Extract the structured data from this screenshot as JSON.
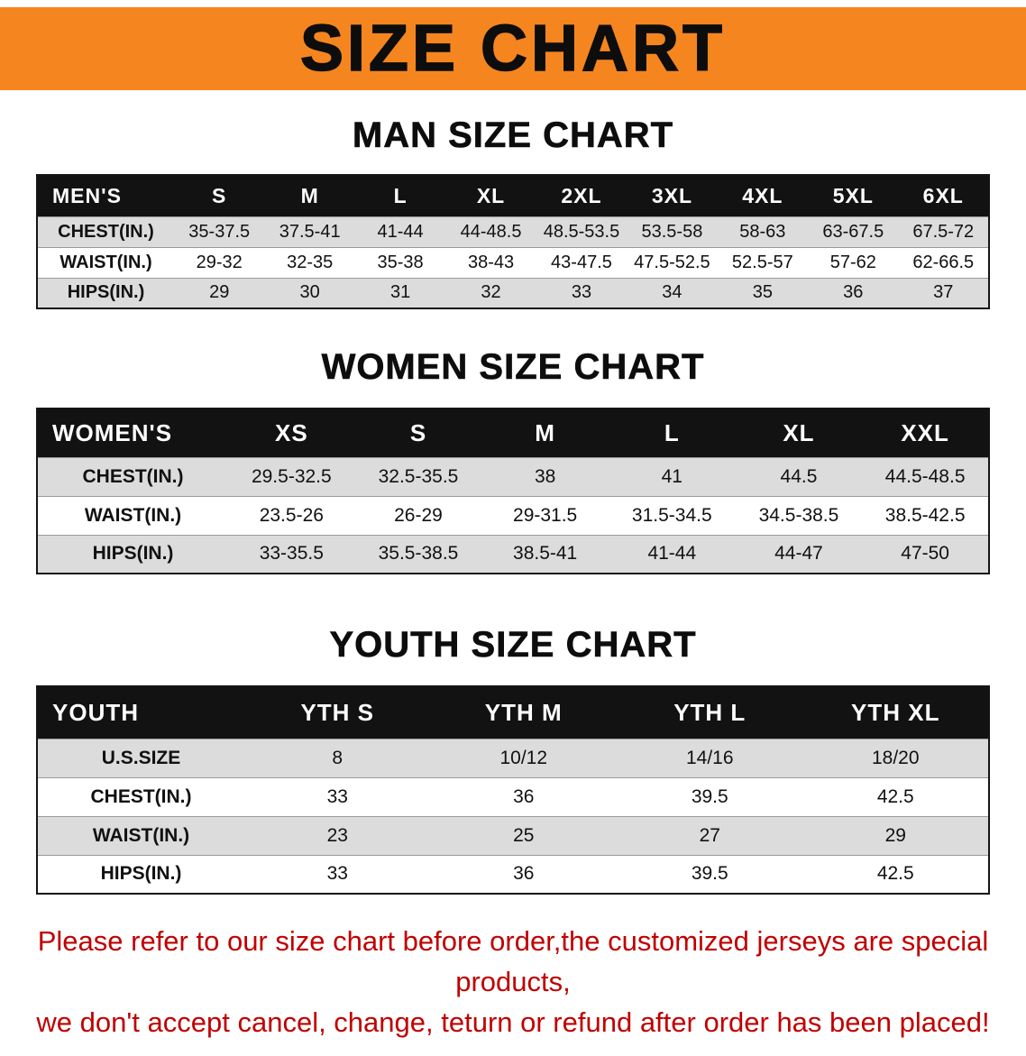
{
  "banner": {
    "title": "SIZE CHART",
    "bg_color": "#F5851F",
    "text_color": "#0d0d0d"
  },
  "sections": [
    {
      "heading": "MAN SIZE CHART",
      "table": {
        "header": [
          "MEN'S",
          "S",
          "M",
          "L",
          "XL",
          "2XL",
          "3XL",
          "4XL",
          "5XL",
          "6XL"
        ],
        "rows": [
          [
            "CHEST(IN.)",
            "35-37.5",
            "37.5-41",
            "41-44",
            "44-48.5",
            "48.5-53.5",
            "53.5-58",
            "58-63",
            "63-67.5",
            "67.5-72"
          ],
          [
            "WAIST(IN.)",
            "29-32",
            "32-35",
            "35-38",
            "38-43",
            "43-47.5",
            "47.5-52.5",
            "52.5-57",
            "57-62",
            "62-66.5"
          ],
          [
            "HIPS(IN.)",
            "29",
            "30",
            "31",
            "32",
            "33",
            "34",
            "35",
            "36",
            "37"
          ]
        ]
      }
    },
    {
      "heading": "WOMEN SIZE CHART",
      "table": {
        "header": [
          "WOMEN'S",
          "XS",
          "S",
          "M",
          "L",
          "XL",
          "XXL"
        ],
        "rows": [
          [
            "CHEST(IN.)",
            "29.5-32.5",
            "32.5-35.5",
            "38",
            "41",
            "44.5",
            "44.5-48.5"
          ],
          [
            "WAIST(IN.)",
            "23.5-26",
            "26-29",
            "29-31.5",
            "31.5-34.5",
            "34.5-38.5",
            "38.5-42.5"
          ],
          [
            "HIPS(IN.)",
            "33-35.5",
            "35.5-38.5",
            "38.5-41",
            "41-44",
            "44-47",
            "47-50"
          ]
        ]
      }
    },
    {
      "heading": "YOUTH SIZE CHART",
      "table": {
        "header": [
          "YOUTH",
          "YTH S",
          "YTH M",
          "YTH L",
          "YTH XL"
        ],
        "rows": [
          [
            "U.S.SIZE",
            "8",
            "10/12",
            "14/16",
            "18/20"
          ],
          [
            "CHEST(IN.)",
            "33",
            "36",
            "39.5",
            "42.5"
          ],
          [
            "WAIST(IN.)",
            "23",
            "25",
            "27",
            "29"
          ],
          [
            "HIPS(IN.)",
            "33",
            "36",
            "39.5",
            "42.5"
          ]
        ]
      }
    }
  ],
  "footer": {
    "line1": "Please refer to our size chart before order,the customized jerseys are special products,",
    "line2": "we don't accept cancel, change, teturn or refund after order has been placed!",
    "color": "#C00000"
  },
  "chart_data": {
    "type": "table",
    "title": "SIZE CHART",
    "tables": [
      {
        "name": "MAN SIZE CHART",
        "columns": [
          "MEN'S",
          "S",
          "M",
          "L",
          "XL",
          "2XL",
          "3XL",
          "4XL",
          "5XL",
          "6XL"
        ],
        "rows": [
          [
            "CHEST(IN.)",
            "35-37.5",
            "37.5-41",
            "41-44",
            "44-48.5",
            "48.5-53.5",
            "53.5-58",
            "58-63",
            "63-67.5",
            "67.5-72"
          ],
          [
            "WAIST(IN.)",
            "29-32",
            "32-35",
            "35-38",
            "38-43",
            "43-47.5",
            "47.5-52.5",
            "52.5-57",
            "57-62",
            "62-66.5"
          ],
          [
            "HIPS(IN.)",
            "29",
            "30",
            "31",
            "32",
            "33",
            "34",
            "35",
            "36",
            "37"
          ]
        ]
      },
      {
        "name": "WOMEN SIZE CHART",
        "columns": [
          "WOMEN'S",
          "XS",
          "S",
          "M",
          "L",
          "XL",
          "XXL"
        ],
        "rows": [
          [
            "CHEST(IN.)",
            "29.5-32.5",
            "32.5-35.5",
            "38",
            "41",
            "44.5",
            "44.5-48.5"
          ],
          [
            "WAIST(IN.)",
            "23.5-26",
            "26-29",
            "29-31.5",
            "31.5-34.5",
            "34.5-38.5",
            "38.5-42.5"
          ],
          [
            "HIPS(IN.)",
            "33-35.5",
            "35.5-38.5",
            "38.5-41",
            "41-44",
            "44-47",
            "47-50"
          ]
        ]
      },
      {
        "name": "YOUTH SIZE CHART",
        "columns": [
          "YOUTH",
          "YTH S",
          "YTH M",
          "YTH L",
          "YTH XL"
        ],
        "rows": [
          [
            "U.S.SIZE",
            "8",
            "10/12",
            "14/16",
            "18/20"
          ],
          [
            "CHEST(IN.)",
            "33",
            "36",
            "39.5",
            "42.5"
          ],
          [
            "WAIST(IN.)",
            "23",
            "25",
            "27",
            "29"
          ],
          [
            "HIPS(IN.)",
            "33",
            "36",
            "39.5",
            "42.5"
          ]
        ]
      }
    ]
  }
}
